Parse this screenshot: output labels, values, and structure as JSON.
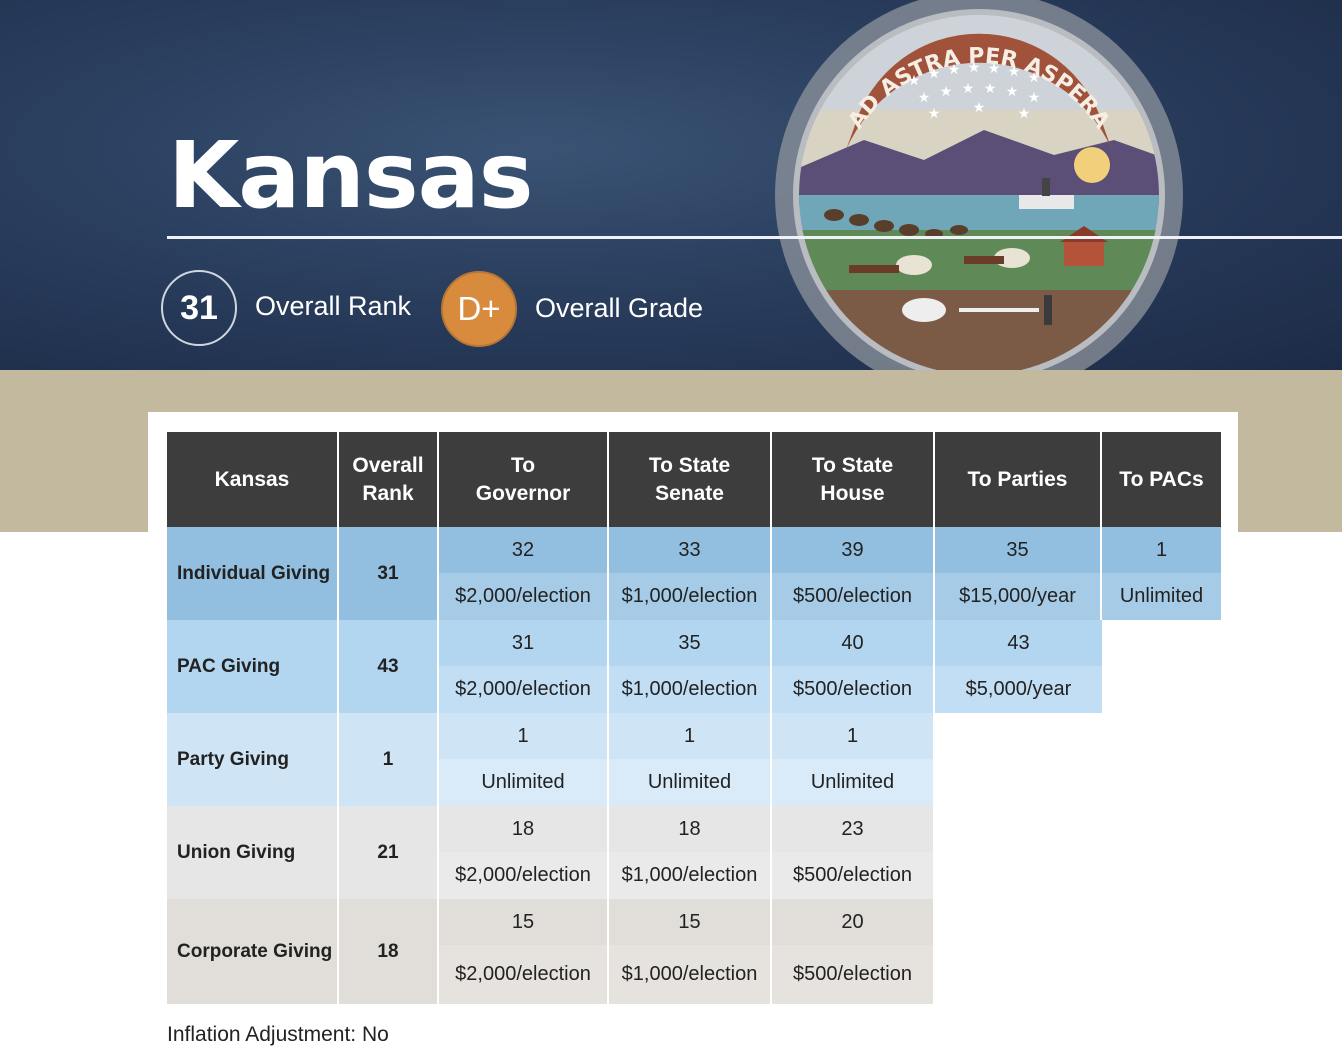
{
  "header": {
    "state": "Kansas",
    "overall_rank": "31",
    "overall_rank_label": "Overall Rank",
    "overall_grade": "D+",
    "overall_grade_label": "Overall Grade",
    "seal_motto": "AD ASTRA PER ASPERA"
  },
  "colors": {
    "hero_bg": "#2a3e5e",
    "grade_orange": "#d88a3d",
    "band_tan": "#c2b99f",
    "header_dark": "#3d3d3d",
    "individual_rank": "#92bfe0",
    "individual_limit": "#a6cbe7",
    "pac_rank": "#b2d5f0",
    "pac_limit": "#c2def4",
    "party_rank": "#cfe5f5",
    "party_limit": "#d9ebf8",
    "union": "#e6e6e6",
    "corporate": "#e1ded9"
  },
  "table": {
    "columns": [
      "Kansas",
      "Overall Rank",
      "To Governor",
      "To State Senate",
      "To State House",
      "To Parties",
      "To PACs"
    ],
    "rows": [
      {
        "label": "Individual Giving",
        "rank": "31",
        "ranks": [
          "32",
          "33",
          "39",
          "35",
          "1"
        ],
        "limits": [
          "$2,000/election",
          "$1,000/election",
          "$500/election",
          "$15,000/year",
          "Unlimited"
        ]
      },
      {
        "label": "PAC Giving",
        "rank": "43",
        "ranks": [
          "31",
          "35",
          "40",
          "43"
        ],
        "limits": [
          "$2,000/election",
          "$1,000/election",
          "$500/election",
          "$5,000/year"
        ]
      },
      {
        "label": "Party Giving",
        "rank": "1",
        "ranks": [
          "1",
          "1",
          "1"
        ],
        "limits": [
          "Unlimited",
          "Unlimited",
          "Unlimited"
        ]
      },
      {
        "label": "Union Giving",
        "rank": "21",
        "ranks": [
          "18",
          "18",
          "23"
        ],
        "limits": [
          "$2,000/election",
          "$1,000/election",
          "$500/election"
        ]
      },
      {
        "label": "Corporate Giving",
        "rank": "18",
        "ranks": [
          "15",
          "15",
          "20"
        ],
        "limits": [
          "$2,000/election",
          "$1,000/election",
          "$500/election"
        ]
      }
    ]
  },
  "footer": {
    "inflation_label": "Inflation Adjustment:",
    "inflation_value": "No"
  }
}
